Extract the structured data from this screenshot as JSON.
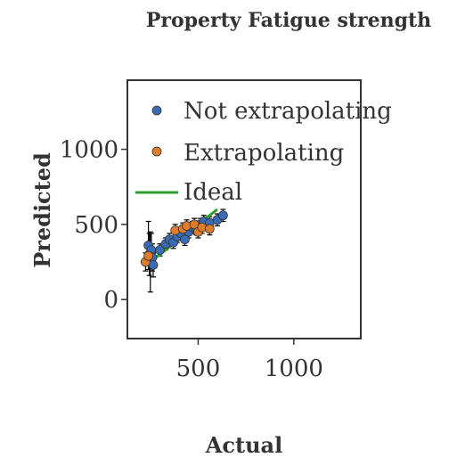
{
  "chart_data": {
    "type": "scatter",
    "title": "Property Fatigue strength",
    "xlabel": "Actual",
    "ylabel": "Predicted",
    "xlim": [
      130,
      1350
    ],
    "ylim": [
      -260,
      1460
    ],
    "xticks": [
      500,
      1000
    ],
    "yticks": [
      0,
      500,
      1000
    ],
    "legend_position": "top-left",
    "grid": false,
    "colors": {
      "not_extrapolating": "#3a6bb5",
      "extrapolating": "#e07b28",
      "ideal": "#2ca02c",
      "errorbar": "#000000",
      "axis": "#333333"
    },
    "series": [
      {
        "name": "Not extrapolating",
        "kind": "scatter",
        "points": [
          {
            "x": 240,
            "y": 360,
            "yerr": 160
          },
          {
            "x": 245,
            "y": 300,
            "yerr": 140
          },
          {
            "x": 250,
            "y": 250,
            "yerr": 200
          },
          {
            "x": 255,
            "y": 330,
            "yerr": 110
          },
          {
            "x": 260,
            "y": 280,
            "yerr": 90
          },
          {
            "x": 265,
            "y": 230,
            "yerr": 80
          },
          {
            "x": 300,
            "y": 330,
            "yerr": 40
          },
          {
            "x": 330,
            "y": 370,
            "yerr": 40
          },
          {
            "x": 350,
            "y": 400,
            "yerr": 40
          },
          {
            "x": 370,
            "y": 380,
            "yerr": 40
          },
          {
            "x": 390,
            "y": 420,
            "yerr": 40
          },
          {
            "x": 410,
            "y": 440,
            "yerr": 40
          },
          {
            "x": 430,
            "y": 400,
            "yerr": 40
          },
          {
            "x": 450,
            "y": 450,
            "yerr": 40
          },
          {
            "x": 470,
            "y": 480,
            "yerr": 40
          },
          {
            "x": 490,
            "y": 470,
            "yerr": 40
          },
          {
            "x": 510,
            "y": 500,
            "yerr": 40
          },
          {
            "x": 530,
            "y": 520,
            "yerr": 40
          },
          {
            "x": 560,
            "y": 510,
            "yerr": 40
          },
          {
            "x": 600,
            "y": 530,
            "yerr": 40
          },
          {
            "x": 630,
            "y": 560,
            "yerr": 40
          }
        ]
      },
      {
        "name": "Extrapolating",
        "kind": "scatter",
        "points": [
          {
            "x": 225,
            "y": 250,
            "yerr": 60
          },
          {
            "x": 240,
            "y": 290,
            "yerr": 50
          },
          {
            "x": 380,
            "y": 460,
            "yerr": 40
          },
          {
            "x": 420,
            "y": 470,
            "yerr": 40
          },
          {
            "x": 440,
            "y": 490,
            "yerr": 40
          },
          {
            "x": 480,
            "y": 500,
            "yerr": 40
          },
          {
            "x": 500,
            "y": 450,
            "yerr": 40
          },
          {
            "x": 520,
            "y": 480,
            "yerr": 40
          },
          {
            "x": 560,
            "y": 470,
            "yerr": 40
          }
        ]
      },
      {
        "name": "Ideal",
        "kind": "line",
        "x": [
          225,
          600
        ],
        "y": [
          225,
          600
        ]
      }
    ]
  }
}
